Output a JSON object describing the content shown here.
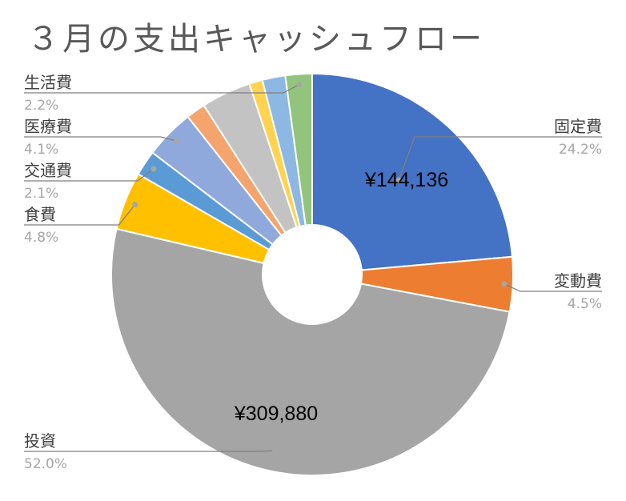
{
  "chart_data": {
    "type": "pie",
    "variant": "doughnut",
    "title": "３月の支出キャッシュフロー",
    "legend": "none",
    "slices": [
      {
        "label": "固定費",
        "value_text": "¥144,136",
        "percent": 24.2,
        "percent_text": "24.2%",
        "color": "#4472C4",
        "show_label": true
      },
      {
        "label": "変動費",
        "value_text": "",
        "percent": 4.5,
        "percent_text": "4.5%",
        "color": "#ED7D31",
        "show_label": true
      },
      {
        "label": "投資",
        "value_text": "¥309,880",
        "percent": 52.0,
        "percent_text": "52.0%",
        "color": "#A5A5A5",
        "show_label": true
      },
      {
        "label": "食費",
        "value_text": "",
        "percent": 4.8,
        "percent_text": "4.8%",
        "color": "#FFC000",
        "show_label": true
      },
      {
        "label": "交通費",
        "value_text": "",
        "percent": 2.1,
        "percent_text": "2.1%",
        "color": "#5B9BD5",
        "show_label": true
      },
      {
        "label": "医療費",
        "value_text": "",
        "percent": 4.1,
        "percent_text": "4.1%",
        "color": "#8FA9DC",
        "show_label": true
      },
      {
        "label": "",
        "value_text": "",
        "percent": 1.6,
        "percent_text": "",
        "color": "#F4A46C",
        "show_label": false
      },
      {
        "label": "",
        "value_text": "",
        "percent": 4.1,
        "percent_text": "",
        "color": "#C3C3C3",
        "show_label": false
      },
      {
        "label": "",
        "value_text": "",
        "percent": 1.1,
        "percent_text": "",
        "color": "#FFD34F",
        "show_label": false
      },
      {
        "label": "",
        "value_text": "",
        "percent": 1.9,
        "percent_text": "",
        "color": "#8DB8E3",
        "show_label": false
      },
      {
        "label": "生活費",
        "value_text": "",
        "percent": 2.2,
        "percent_text": "2.2%",
        "color": "#93C47D",
        "show_label": true
      }
    ],
    "colors": {
      "title": "#595959",
      "label": "#404040",
      "percent": "#A6A6A6",
      "leader": "#7F7F7F",
      "value": "#000000"
    }
  }
}
